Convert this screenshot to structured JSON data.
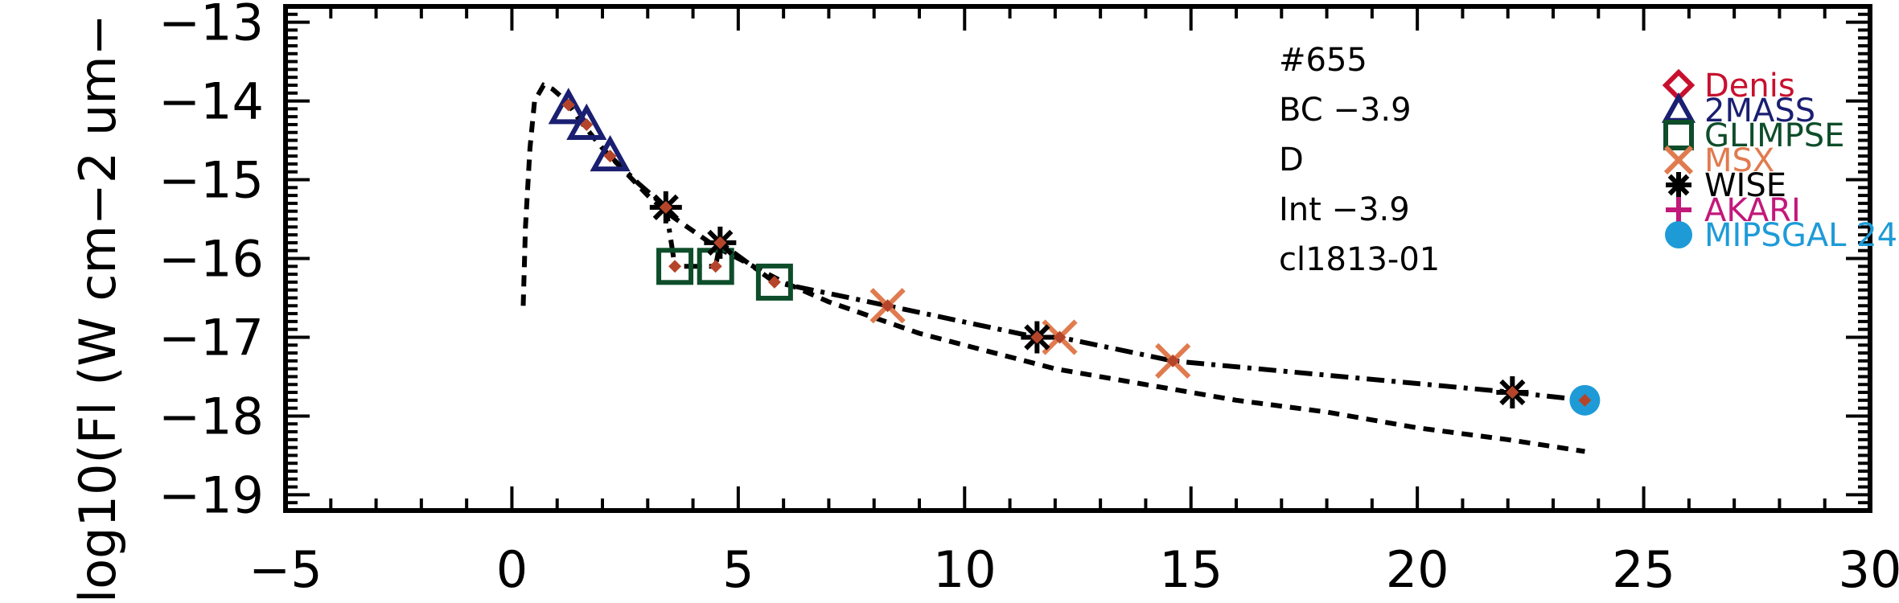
{
  "chart_data": {
    "type": "scatter",
    "title": "",
    "xlabel": "",
    "ylabel": "log10(Fl (W cm−2 um−",
    "xlim": [
      -5,
      30
    ],
    "ylim": [
      -19.2,
      -12.8
    ],
    "grid": false,
    "legend_position": "right",
    "x_ticks": [
      -5,
      0,
      5,
      10,
      15,
      20,
      25,
      30
    ],
    "x_tick_labels": [
      "−5",
      "0",
      "5",
      "10",
      "15",
      "20",
      "25",
      "30"
    ],
    "y_ticks": [
      -13,
      -14,
      -15,
      -16,
      -17,
      -18,
      -19
    ],
    "y_tick_labels": [
      "−13",
      "−14",
      "−15",
      "−16",
      "−17",
      "−18",
      "−19"
    ],
    "annotations": [
      "#655",
      "BC −3.9",
      "D",
      "Int −3.9",
      "cl1813-01"
    ],
    "colors": {
      "Denis": "#c8102e",
      "2MASS": "#1a1f71",
      "GLIMPSE": "#0e4d2a",
      "MSX": "#e07b4f",
      "WISE": "#000000",
      "AKARI": "#c2187a",
      "MIPSGAL": "#1e9bd7",
      "observed": "#b5452a"
    },
    "series": [
      {
        "name": "Denis",
        "marker": "diamond",
        "x": [],
        "y": []
      },
      {
        "name": "2MASS",
        "marker": "triangle",
        "x": [
          1.25,
          1.65,
          2.17
        ],
        "y": [
          -14.1,
          -14.3,
          -14.7
        ]
      },
      {
        "name": "GLIMPSE",
        "marker": "square",
        "x": [
          3.6,
          4.5,
          5.8
        ],
        "y": [
          -16.1,
          -16.1,
          -16.3
        ]
      },
      {
        "name": "MSX",
        "marker": "x",
        "x": [
          8.3,
          12.1,
          14.6
        ],
        "y": [
          -16.6,
          -17.0,
          -17.3
        ]
      },
      {
        "name": "WISE",
        "marker": "asterisk",
        "x": [
          3.4,
          4.6,
          11.6,
          22.1
        ],
        "y": [
          -15.35,
          -15.8,
          -17.0,
          -17.7
        ]
      },
      {
        "name": "AKARI",
        "marker": "plus",
        "x": [],
        "y": []
      },
      {
        "name": "MIPSGAL 24",
        "marker": "circle",
        "x": [
          23.7
        ],
        "y": [
          -17.8
        ]
      }
    ],
    "observed_points": {
      "x": [
        1.25,
        1.65,
        2.17,
        3.4,
        3.6,
        4.5,
        4.6,
        5.8,
        8.3,
        11.6,
        12.1,
        14.6,
        22.1,
        23.7
      ],
      "y": [
        -14.05,
        -14.3,
        -14.7,
        -15.35,
        -16.1,
        -16.1,
        -15.8,
        -16.3,
        -16.6,
        -17.0,
        -17.0,
        -17.3,
        -17.7,
        -17.8
      ]
    },
    "curves": [
      {
        "style": "dashed",
        "x": [
          0.25,
          0.3,
          0.4,
          0.5,
          0.7,
          0.9,
          1.2,
          1.5,
          2.0,
          2.5,
          3.0,
          3.5,
          4.0,
          4.5,
          5.0,
          6.0,
          7.0,
          8.0,
          9.0,
          10.0,
          11.0,
          12.0,
          14.0,
          16.0,
          18.0,
          20.0,
          22.0,
          23.7
        ],
        "y": [
          -16.6,
          -15.6,
          -14.6,
          -14.0,
          -13.8,
          -13.85,
          -14.0,
          -14.25,
          -14.6,
          -14.9,
          -15.2,
          -15.45,
          -15.65,
          -15.85,
          -16.0,
          -16.3,
          -16.55,
          -16.75,
          -16.95,
          -17.1,
          -17.25,
          -17.4,
          -17.6,
          -17.8,
          -17.95,
          -18.15,
          -18.3,
          -18.45
        ]
      },
      {
        "style": "dash-dot",
        "x": [
          2.17,
          2.8,
          3.4,
          3.6,
          4.5,
          4.6,
          5.8,
          8.3,
          11.6,
          12.1,
          14.6,
          22.1,
          23.7
        ],
        "y": [
          -14.7,
          -15.05,
          -15.35,
          -16.1,
          -16.1,
          -15.8,
          -16.3,
          -16.6,
          -17.0,
          -17.0,
          -17.3,
          -17.7,
          -17.8
        ]
      }
    ]
  }
}
